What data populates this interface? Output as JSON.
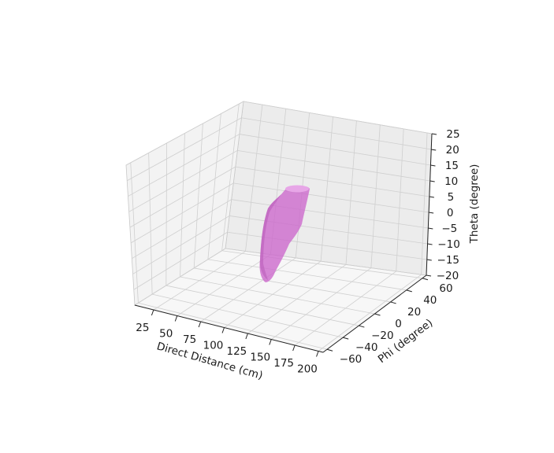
{
  "chart_data": {
    "type": "3d-surface",
    "title": "",
    "xlabel": "Direct Distance (cm)",
    "ylabel": "Phi (degree)",
    "zlabel": "Theta (degree)",
    "x_ticks": [
      "25",
      "50",
      "75",
      "100",
      "125",
      "150",
      "175",
      "200"
    ],
    "y_ticks": [
      "−60",
      "−40",
      "−20",
      "0",
      "20",
      "40",
      "60"
    ],
    "z_ticks": [
      "−20",
      "−15",
      "−10",
      "−5",
      "0",
      "5",
      "10",
      "15",
      "20",
      "25"
    ],
    "xlim": [
      5,
      205
    ],
    "ylim": [
      -65,
      65
    ],
    "zlim": [
      -20,
      25
    ],
    "grid": true,
    "surface": {
      "color": "#cc66cc",
      "opacity": 0.78,
      "top_cap_color": "#e7a6e7",
      "approx_extent": {
        "distance_cm": [
          30,
          100
        ],
        "phi_deg": [
          -20,
          20
        ],
        "theta_deg": [
          -18,
          10
        ]
      }
    }
  }
}
